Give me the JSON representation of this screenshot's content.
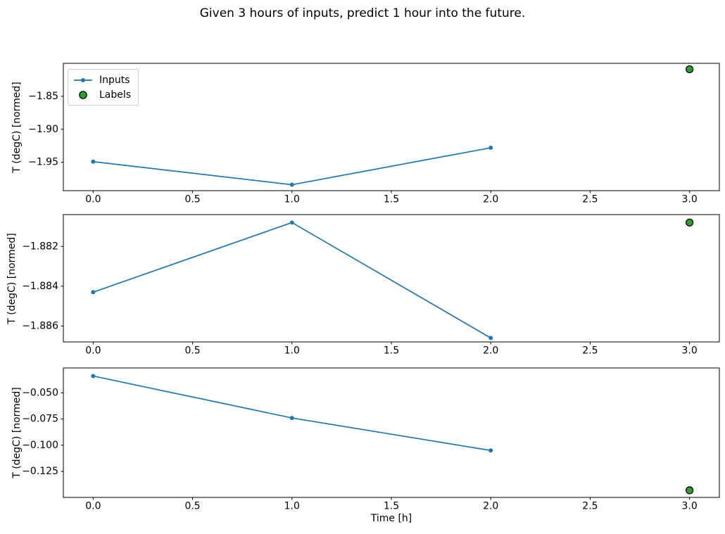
{
  "title": "Given 3 hours of inputs, predict 1 hour into the future.",
  "legend": {
    "inputs_label": "Inputs",
    "labels_label": "Labels"
  },
  "colors": {
    "inputs": "#1f77b4",
    "labels_fill": "#2ca02c",
    "labels_edge": "#000000",
    "axes": "#000000",
    "background": "#ffffff"
  },
  "chart_data": {
    "type": "line",
    "title": "Given 3 hours of inputs, predict 1 hour into the future.",
    "xlabel": "Time [h]",
    "grid": false,
    "legend_entries": [
      "Inputs",
      "Labels"
    ],
    "legend_position": "upper left of subplot 1",
    "xlim": [
      -0.15,
      3.15
    ],
    "x_tick_values": [
      0,
      0.5,
      1,
      1.5,
      2,
      2.5,
      3
    ],
    "x_tick_labels": [
      "0.0",
      "0.5",
      "1.0",
      "1.5",
      "2.0",
      "2.5",
      "3.0"
    ],
    "subplots": [
      {
        "ylabel": "T (degC) [normed]",
        "ylim": [
          -1.993,
          -1.8
        ],
        "y_tick_values": [
          -1.85,
          -1.9,
          -1.95
        ],
        "y_tick_labels": [
          "−1.85",
          "−1.90",
          "−1.95"
        ],
        "series": [
          {
            "name": "Inputs",
            "type": "line",
            "marker": "dot",
            "x": [
              0,
              1,
              2
            ],
            "y": [
              -1.949,
              -1.984,
              -1.928
            ]
          },
          {
            "name": "Labels",
            "type": "scatter",
            "marker": "circle",
            "x": [
              3
            ],
            "y": [
              -1.809
            ]
          }
        ]
      },
      {
        "ylabel": "T (degC) [normed]",
        "ylim": [
          -1.8868,
          -1.8804
        ],
        "y_tick_values": [
          -1.882,
          -1.884,
          -1.886
        ],
        "y_tick_labels": [
          "−1.882",
          "−1.884",
          "−1.886"
        ],
        "series": [
          {
            "name": "Inputs",
            "type": "line",
            "marker": "dot",
            "x": [
              0,
              1,
              2
            ],
            "y": [
              -1.8843,
              -1.8808,
              -1.8866
            ]
          },
          {
            "name": "Labels",
            "type": "scatter",
            "marker": "circle",
            "x": [
              3
            ],
            "y": [
              -1.8808
            ]
          }
        ]
      },
      {
        "ylabel": "T (degC) [normed]",
        "ylim": [
          -0.1498,
          -0.0263
        ],
        "y_tick_values": [
          -0.05,
          -0.075,
          -0.1,
          -0.125
        ],
        "y_tick_labels": [
          "−0.050",
          "−0.075",
          "−0.100",
          "−0.125"
        ],
        "series": [
          {
            "name": "Inputs",
            "type": "line",
            "marker": "dot",
            "x": [
              0,
              1,
              2
            ],
            "y": [
              -0.034,
              -0.074,
              -0.105
            ]
          },
          {
            "name": "Labels",
            "type": "scatter",
            "marker": "circle",
            "x": [
              3
            ],
            "y": [
              -0.143
            ]
          }
        ]
      }
    ]
  }
}
